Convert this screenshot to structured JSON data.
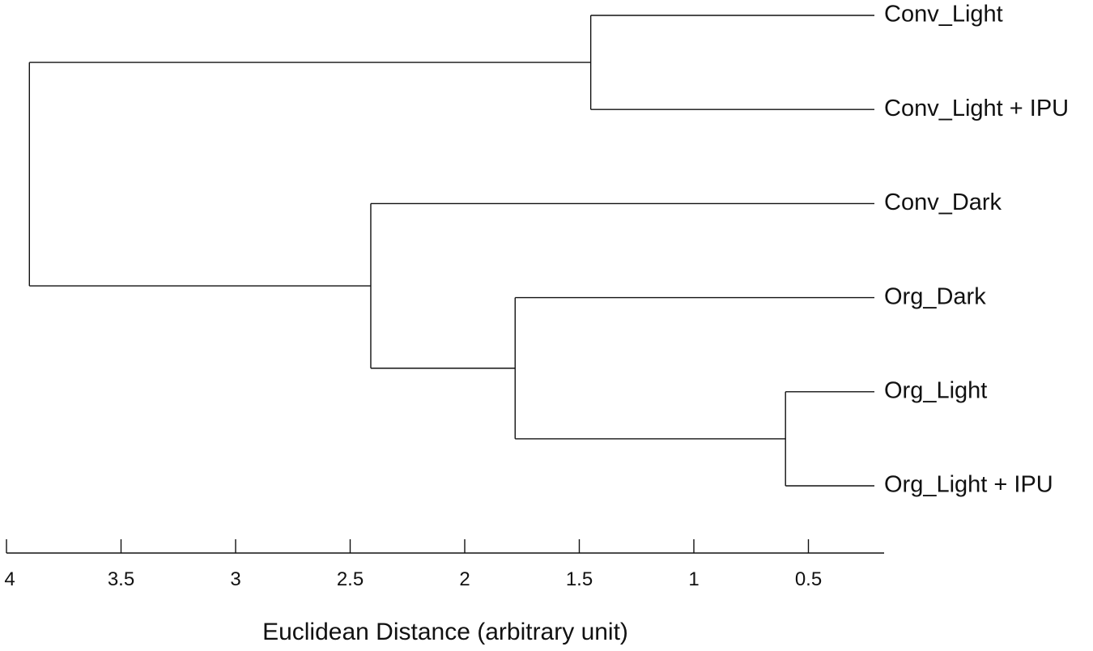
{
  "chart_data": {
    "type": "dendrogram",
    "title": "",
    "xlabel": "Euclidean Distance (arbitrary unit)",
    "ylabel": "",
    "x_axis_reversed": true,
    "xlim": [
      4,
      0.2
    ],
    "x_ticks": [
      {
        "value": 4,
        "label": "4"
      },
      {
        "value": 3.5,
        "label": "3.5"
      },
      {
        "value": 3,
        "label": "3"
      },
      {
        "value": 2.5,
        "label": "2.5"
      },
      {
        "value": 2,
        "label": "2"
      },
      {
        "value": 1.5,
        "label": "1.5"
      },
      {
        "value": 1,
        "label": "1"
      },
      {
        "value": 0.5,
        "label": "0.5"
      }
    ],
    "leaves": [
      "Conv_Light",
      "Conv_Light + IPU",
      "Conv_Dark",
      "Org_Dark",
      "Org_Light",
      "Org_Light + IPU"
    ],
    "leaf_distance": 0,
    "merges": [
      {
        "id": "m1",
        "children": [
          "Org_Light",
          "Org_Light + IPU"
        ],
        "distance": 0.6
      },
      {
        "id": "m2",
        "children": [
          "Conv_Light",
          "Conv_Light + IPU"
        ],
        "distance": 1.45
      },
      {
        "id": "m3",
        "children": [
          "Org_Dark",
          "m1"
        ],
        "distance": 1.78
      },
      {
        "id": "m4",
        "children": [
          "Conv_Dark",
          "m3"
        ],
        "distance": 2.41
      },
      {
        "id": "m5",
        "children": [
          "m2",
          "m4"
        ],
        "distance": 3.9
      }
    ],
    "grid": false,
    "legend": "none"
  }
}
